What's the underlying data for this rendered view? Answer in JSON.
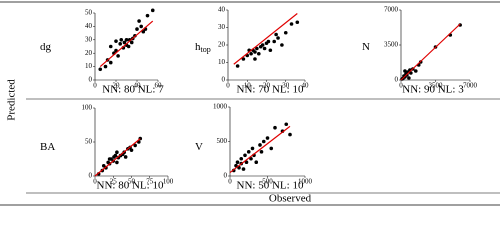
{
  "axis_labels": {
    "y": "Predicted",
    "x": "Observed"
  },
  "chart_data": [
    {
      "type": "scatter",
      "label": "dg",
      "caption": "NN: 80 NL: 7",
      "color": "#000000",
      "xlim": [
        0,
        60
      ],
      "xticks": [
        0,
        20,
        40,
        60
      ],
      "ylim": [
        0,
        50
      ],
      "yticks": [
        0,
        10,
        20,
        30,
        40,
        50
      ],
      "x": [
        10,
        12,
        15,
        18,
        20,
        22,
        24,
        25,
        27,
        28,
        30,
        30,
        32,
        33,
        35,
        36,
        38,
        40,
        42,
        44,
        46,
        48,
        50,
        55,
        20,
        15,
        5
      ],
      "values": [
        10,
        15,
        13,
        20,
        22,
        18,
        27,
        30,
        24,
        28,
        26,
        30,
        25,
        30,
        28,
        31,
        33,
        38,
        44,
        40,
        36,
        38,
        48,
        52,
        29,
        25,
        8
      ],
      "trend_x": [
        5,
        55
      ],
      "trend_y": [
        10,
        44
      ],
      "trend_color": "#e00000"
    },
    {
      "type": "scatter",
      "label": "h",
      "label_subscript": "top",
      "caption": "NN: 70 NL: 10",
      "color": "#000000",
      "xlim": [
        0,
        40
      ],
      "xticks": [
        0,
        10,
        20,
        30,
        40
      ],
      "ylim": [
        0,
        40
      ],
      "yticks": [
        0,
        10,
        20,
        30,
        40
      ],
      "x": [
        5,
        8,
        10,
        12,
        13,
        14,
        15,
        16,
        17,
        18,
        19,
        20,
        21,
        22,
        24,
        25,
        26,
        28,
        30,
        33,
        36,
        11,
        14
      ],
      "values": [
        8,
        12,
        14,
        15,
        17,
        16,
        18,
        15,
        19,
        20,
        18,
        21,
        22,
        17,
        22,
        26,
        24,
        20,
        27,
        32,
        33,
        17,
        12
      ],
      "trend_x": [
        3,
        36
      ],
      "trend_y": [
        9,
        38
      ],
      "trend_color": "#e00000"
    },
    {
      "type": "scatter",
      "label": "N",
      "caption": "NN: 90 NL: 3",
      "color": "#000000",
      "xlim": [
        0,
        7000
      ],
      "xticks": [
        0,
        3500,
        7000
      ],
      "ylim": [
        0,
        7000
      ],
      "yticks": [
        0,
        3500,
        7000
      ],
      "x": [
        200,
        300,
        400,
        500,
        600,
        700,
        800,
        900,
        1000,
        1200,
        1500,
        1800,
        2000,
        3500,
        5000,
        6000,
        400,
        100
      ],
      "values": [
        150,
        400,
        300,
        600,
        500,
        800,
        200,
        1000,
        700,
        1100,
        900,
        1500,
        1800,
        3300,
        4500,
        5500,
        900,
        100
      ],
      "trend_x": [
        0,
        6000
      ],
      "trend_y": [
        0,
        5600
      ],
      "trend_color": "#e00000"
    },
    {
      "type": "scatter",
      "label": "BA",
      "caption": "NN: 80 NL: 10",
      "color": "#000000",
      "xlim": [
        0,
        100
      ],
      "xticks": [
        0,
        25,
        50,
        75,
        100
      ],
      "ylim": [
        0,
        100
      ],
      "yticks": [
        0,
        50,
        100
      ],
      "x": [
        5,
        10,
        12,
        15,
        18,
        20,
        22,
        25,
        26,
        28,
        30,
        32,
        35,
        38,
        40,
        42,
        45,
        48,
        50,
        55,
        60,
        62,
        30,
        20
      ],
      "values": [
        3,
        8,
        15,
        12,
        20,
        18,
        25,
        22,
        28,
        30,
        20,
        27,
        30,
        32,
        35,
        28,
        40,
        42,
        38,
        45,
        50,
        55,
        35,
        25
      ],
      "trend_x": [
        0,
        62
      ],
      "trend_y": [
        0,
        55
      ],
      "trend_color": "#e00000"
    },
    {
      "type": "scatter",
      "label": "V",
      "caption": "NN: 50 NL: 10",
      "color": "#000000",
      "xlim": [
        0,
        1000
      ],
      "xticks": [
        0,
        500,
        1000
      ],
      "ylim": [
        0,
        1000
      ],
      "yticks": [
        0,
        500,
        1000
      ],
      "x": [
        50,
        80,
        100,
        120,
        150,
        180,
        200,
        220,
        250,
        280,
        300,
        320,
        350,
        400,
        420,
        450,
        500,
        550,
        600,
        700,
        750,
        800,
        150
      ],
      "values": [
        80,
        150,
        200,
        120,
        250,
        100,
        300,
        200,
        350,
        250,
        400,
        300,
        200,
        450,
        350,
        500,
        550,
        400,
        700,
        650,
        750,
        600,
        180
      ],
      "trend_x": [
        0,
        800
      ],
      "trend_y": [
        50,
        720
      ],
      "trend_color": "#e00000"
    }
  ]
}
